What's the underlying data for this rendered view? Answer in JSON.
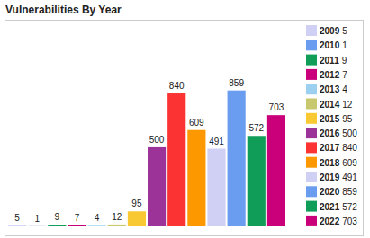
{
  "chart_data": {
    "type": "bar",
    "title": "Vulnerabilities By Year",
    "categories": [
      "2009",
      "2010",
      "2011",
      "2012",
      "2013",
      "2014",
      "2015",
      "2016",
      "2017",
      "2018",
      "2019",
      "2020",
      "2021",
      "2022"
    ],
    "values": [
      5,
      1,
      9,
      7,
      4,
      12,
      95,
      500,
      840,
      609,
      491,
      859,
      572,
      703
    ],
    "colors": [
      "#d0d0f4",
      "#6a9cf0",
      "#0f9d58",
      "#c9007a",
      "#9cd0f0",
      "#c8c86e",
      "#f9c934",
      "#9b3399",
      "#fb3333",
      "#fd9800",
      "#d0d0f4",
      "#6a9cf0",
      "#0f9d58",
      "#c9007a"
    ],
    "ylim": [
      0,
      1300
    ],
    "tick_labels": false,
    "grid": false,
    "legend": "right",
    "data_labels": true
  }
}
